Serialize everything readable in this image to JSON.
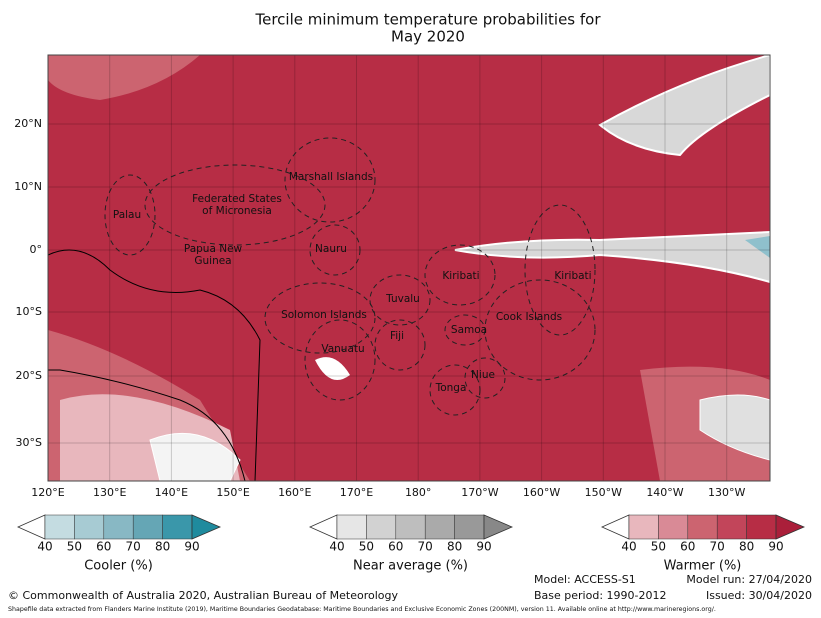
{
  "title": [
    "Tercile minimum temperature probabilities for",
    "May 2020"
  ],
  "lat_labels": [
    "20°N",
    "10°N",
    "0°",
    "10°S",
    "20°S",
    "30°S"
  ],
  "lon_labels": [
    "120°E",
    "130°E",
    "140°E",
    "150°E",
    "160°E",
    "170°E",
    "180°",
    "170°W",
    "160°W",
    "150°W",
    "140°W",
    "130°W"
  ],
  "regions": [
    {
      "lines": [
        "Palau"
      ]
    },
    {
      "lines": [
        "Federated States",
        "of Micronesia"
      ]
    },
    {
      "lines": [
        "Marshall Islands"
      ]
    },
    {
      "lines": [
        "Papua New",
        "Guinea"
      ]
    },
    {
      "lines": [
        "Nauru"
      ]
    },
    {
      "lines": [
        "Kiribati"
      ]
    },
    {
      "lines": [
        "Kiribati"
      ]
    },
    {
      "lines": [
        "Tuvalu"
      ]
    },
    {
      "lines": [
        "Solomon Islands"
      ]
    },
    {
      "lines": [
        "Fiji"
      ]
    },
    {
      "lines": [
        "Samoa"
      ]
    },
    {
      "lines": [
        "Cook Islands"
      ]
    },
    {
      "lines": [
        "Vanuatu"
      ]
    },
    {
      "lines": [
        "Niue"
      ]
    },
    {
      "lines": [
        "Tonga"
      ]
    }
  ],
  "colorbars": [
    {
      "label": "Cooler (%)",
      "ticks": [
        40,
        50,
        60,
        70,
        80,
        90
      ],
      "colors": [
        "#ffffff",
        "#c4dce1",
        "#a7cbd3",
        "#88b8c4",
        "#65a6b5",
        "#3a97aa",
        "#1f8b9e"
      ]
    },
    {
      "label": "Near average (%)",
      "ticks": [
        40,
        50,
        60,
        70,
        80,
        90
      ],
      "colors": [
        "#ffffff",
        "#e6e6e6",
        "#d2d2d2",
        "#bebebe",
        "#aaaaaa",
        "#999999",
        "#888888"
      ]
    },
    {
      "label": "Warmer (%)",
      "ticks": [
        40,
        50,
        60,
        70,
        80,
        90
      ],
      "colors": [
        "#ffffff",
        "#e8b7bd",
        "#d98a96",
        "#cc6470",
        "#c2455a",
        "#b72d45",
        "#aa1f3a"
      ]
    }
  ],
  "footer": {
    "copyright": "© Commonwealth of Australia 2020, Australian Bureau of Meteorology",
    "shapefile": "Shapefile data extracted from Flanders Marine Institute (2019), Maritime Boundaries Geodatabase: Maritime Boundaries and Exclusive Economic Zones (200NM), version 11. Available online at http://www.marineregions.org/.",
    "model": "Model: ACCESS-S1",
    "base_period": "Base period: 1990-2012",
    "model_run": "Model run: 27/04/2020",
    "issued": "Issued: 30/04/2020"
  }
}
